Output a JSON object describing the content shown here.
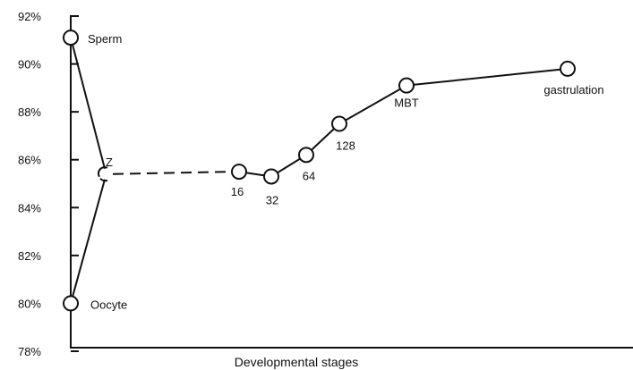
{
  "chart_data": {
    "type": "line",
    "xlabel": "Developmental stages",
    "ylabel": "",
    "ylim": [
      78,
      92
    ],
    "yticks": [
      {
        "value": 92,
        "label": "92%"
      },
      {
        "value": 90,
        "label": "90%"
      },
      {
        "value": 88,
        "label": "88%"
      },
      {
        "value": 86,
        "label": "86%"
      },
      {
        "value": 84,
        "label": "84%"
      },
      {
        "value": 82,
        "label": "82%"
      },
      {
        "value": 80,
        "label": "80%"
      },
      {
        "value": 78,
        "label": "78%"
      }
    ],
    "x_axis_type": "ordinal (unlabeled stage positions)",
    "points": {
      "sperm": {
        "label": "Sperm",
        "value": 91.1
      },
      "oocyte": {
        "label": "Oocyte",
        "value": 80.0
      },
      "zygote": {
        "label": "Z",
        "value": 85.4
      }
    },
    "series": [
      {
        "style": "solid+dashed",
        "points": [
          {
            "label": "16",
            "value": 85.5
          },
          {
            "label": "32",
            "value": 85.3
          },
          {
            "label": "64",
            "value": 86.2
          },
          {
            "label": "128",
            "value": 87.5
          },
          {
            "label": "MBT",
            "value": 89.1
          },
          {
            "label": "gastrulation",
            "value": 89.8
          }
        ]
      }
    ],
    "colors": {
      "line": "#111111",
      "marker_fill": "#ffffff"
    }
  }
}
